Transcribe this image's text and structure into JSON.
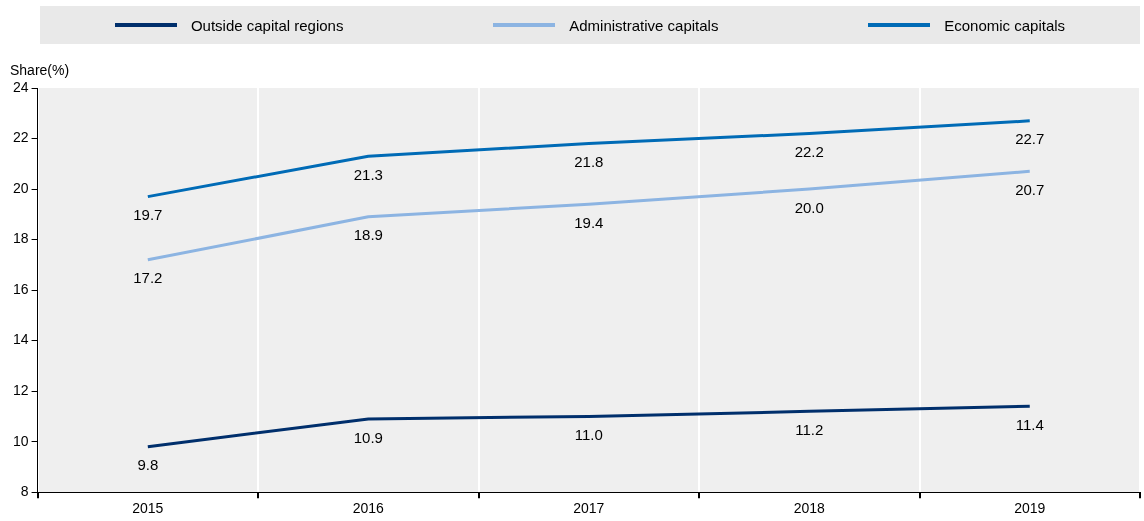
{
  "chart_data": {
    "type": "line",
    "ylabel": "Share(%)",
    "categories": [
      "2015",
      "2016",
      "2017",
      "2018",
      "2019"
    ],
    "series": [
      {
        "name": "Outside capital regions",
        "color": "#002f6c",
        "values": [
          9.8,
          10.9,
          11.0,
          11.2,
          11.4
        ],
        "value_labels": [
          "9.8",
          "10.9",
          "11.0",
          "11.2",
          "11.4"
        ]
      },
      {
        "name": "Administrative capitals",
        "color": "#8cb4e2",
        "values": [
          17.2,
          18.9,
          19.4,
          20.0,
          20.7
        ],
        "value_labels": [
          "17.2",
          "18.9",
          "19.4",
          "20.0",
          "20.7"
        ]
      },
      {
        "name": "Economic capitals",
        "color": "#006bb6",
        "values": [
          19.7,
          21.3,
          21.8,
          22.2,
          22.7
        ],
        "value_labels": [
          "19.7",
          "21.3",
          "21.8",
          "22.2",
          "22.7"
        ]
      }
    ],
    "ylim": [
      8,
      24
    ],
    "yticks": [
      8,
      10,
      12,
      14,
      16,
      18,
      20,
      22,
      24
    ],
    "grid": "x",
    "legend": "top",
    "marker": "none",
    "line_style": "solid"
  }
}
